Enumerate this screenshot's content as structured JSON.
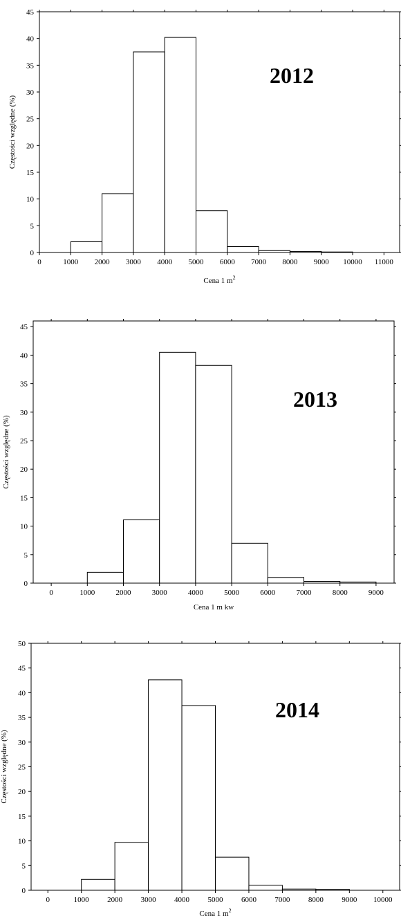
{
  "chart_data": [
    {
      "type": "bar",
      "title": "2012",
      "xlabel": "Cena 1 m",
      "xlabel_sup": "2",
      "ylabel": "Częstości względne (%)",
      "xlim": [
        0,
        11500
      ],
      "ylim": [
        0,
        45
      ],
      "xticks": [
        0,
        1000,
        2000,
        3000,
        4000,
        5000,
        6000,
        7000,
        8000,
        9000,
        10000,
        11000
      ],
      "yticks": [
        0,
        5,
        10,
        15,
        20,
        25,
        30,
        35,
        40,
        45
      ],
      "bins": [
        {
          "x0": 1000,
          "x1": 2000,
          "value": 2.0
        },
        {
          "x0": 2000,
          "x1": 3000,
          "value": 11.0
        },
        {
          "x0": 3000,
          "x1": 4000,
          "value": 37.5
        },
        {
          "x0": 4000,
          "x1": 5000,
          "value": 40.2
        },
        {
          "x0": 5000,
          "x1": 6000,
          "value": 7.8
        },
        {
          "x0": 6000,
          "x1": 7000,
          "value": 1.1
        },
        {
          "x0": 7000,
          "x1": 8000,
          "value": 0.35
        },
        {
          "x0": 8000,
          "x1": 9000,
          "value": 0.2
        },
        {
          "x0": 9000,
          "x1": 10000,
          "value": 0.1
        }
      ]
    },
    {
      "type": "bar",
      "title": "2013",
      "xlabel": "Cena 1 m kw",
      "xlabel_sup": "",
      "ylabel": "Częstości względne (%)",
      "xlim": [
        -500,
        9500
      ],
      "ylim": [
        0,
        46
      ],
      "xticks": [
        0,
        1000,
        2000,
        3000,
        4000,
        5000,
        6000,
        7000,
        8000,
        9000
      ],
      "yticks": [
        0,
        5,
        10,
        15,
        20,
        25,
        30,
        35,
        40,
        45
      ],
      "bins": [
        {
          "x0": 1000,
          "x1": 2000,
          "value": 1.9
        },
        {
          "x0": 2000,
          "x1": 3000,
          "value": 11.1
        },
        {
          "x0": 3000,
          "x1": 4000,
          "value": 40.5
        },
        {
          "x0": 4000,
          "x1": 5000,
          "value": 38.2
        },
        {
          "x0": 5000,
          "x1": 6000,
          "value": 7.0
        },
        {
          "x0": 6000,
          "x1": 7000,
          "value": 1.0
        },
        {
          "x0": 7000,
          "x1": 8000,
          "value": 0.3
        },
        {
          "x0": 8000,
          "x1": 9000,
          "value": 0.2
        }
      ]
    },
    {
      "type": "bar",
      "title": "2014",
      "xlabel": "Cena 1 m",
      "xlabel_sup": "2",
      "ylabel": "Częstości względne (%)",
      "xlim": [
        -500,
        10500
      ],
      "ylim": [
        0,
        50
      ],
      "xticks": [
        0,
        1000,
        2000,
        3000,
        4000,
        5000,
        6000,
        7000,
        8000,
        9000,
        10000
      ],
      "yticks": [
        0,
        5,
        10,
        15,
        20,
        25,
        30,
        35,
        40,
        45,
        50
      ],
      "bins": [
        {
          "x0": 1000,
          "x1": 2000,
          "value": 2.2
        },
        {
          "x0": 2000,
          "x1": 3000,
          "value": 9.7
        },
        {
          "x0": 3000,
          "x1": 4000,
          "value": 42.6
        },
        {
          "x0": 4000,
          "x1": 5000,
          "value": 37.4
        },
        {
          "x0": 5000,
          "x1": 6000,
          "value": 6.7
        },
        {
          "x0": 6000,
          "x1": 7000,
          "value": 1.0
        },
        {
          "x0": 7000,
          "x1": 8000,
          "value": 0.25
        },
        {
          "x0": 8000,
          "x1": 9000,
          "value": 0.2
        }
      ]
    }
  ]
}
